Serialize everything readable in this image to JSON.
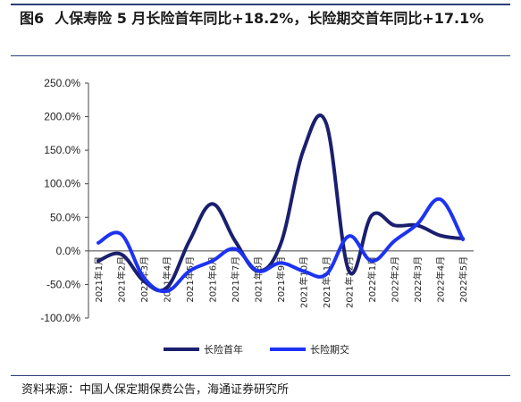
{
  "figure_label": "图6",
  "title": "人保寿险 5 月长险首年同比+18.2%，长险期交首年同比+17.1%",
  "source": "资料来源：中国人保定期保费公告，海通证券研究所",
  "colors": {
    "series1": "#1a1f6e",
    "series2": "#1c33f2",
    "rule": "#2b3f78"
  },
  "chart_data": {
    "type": "line",
    "title": "",
    "xlabel": "",
    "ylabel": "",
    "ylim": [
      -100,
      250
    ],
    "yticks": [
      "250.0%",
      "200.0%",
      "150.0%",
      "100.0%",
      "50.0%",
      "0.0%",
      "-50.0%",
      "-100.0%"
    ],
    "ytick_values": [
      250,
      200,
      150,
      100,
      50,
      0,
      -50,
      -100
    ],
    "categories": [
      "2021年1月",
      "2021年2月",
      "2021年3月",
      "2021年4月",
      "2021年5月",
      "2021年6月",
      "2021年7月",
      "2021年8月",
      "2021年9月",
      "2021年10月",
      "2021年11月",
      "2021年12月",
      "2022年1月",
      "2022年2月",
      "2022年3月",
      "2022年4月",
      "2022年5月"
    ],
    "grid": false,
    "legend_position": "bottom",
    "series": [
      {
        "name": "长险首年",
        "values": [
          -15,
          -5,
          -45,
          -55,
          15,
          70,
          15,
          -30,
          10,
          150,
          190,
          -30,
          53,
          38,
          38,
          23,
          18.2
        ]
      },
      {
        "name": "长险期交",
        "values": [
          12,
          25,
          -40,
          -60,
          -30,
          -15,
          3,
          -30,
          -18,
          -30,
          -35,
          22,
          -15,
          15,
          40,
          77,
          17.1
        ]
      }
    ]
  }
}
